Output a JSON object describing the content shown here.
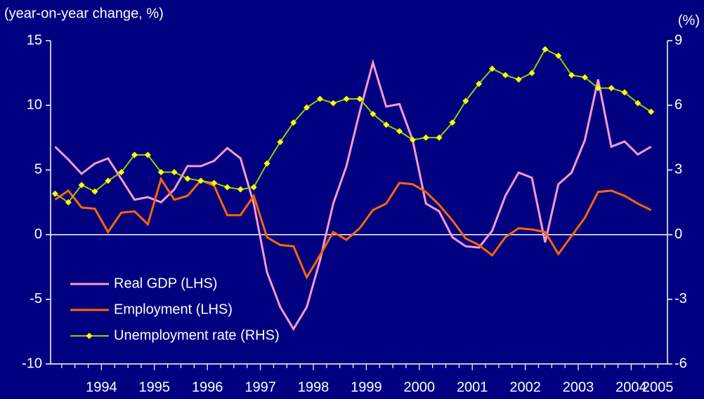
{
  "chart_data": {
    "type": "line",
    "y_label": "(year-on-year change, %)",
    "y2_label": "(%)",
    "categories": [
      null,
      null,
      null,
      "1994",
      null,
      null,
      null,
      "1995",
      null,
      null,
      null,
      "1996",
      null,
      null,
      null,
      "1997",
      null,
      null,
      null,
      "1998",
      null,
      null,
      null,
      "1999",
      null,
      null,
      null,
      "2000",
      null,
      null,
      null,
      "2001",
      null,
      null,
      null,
      "2002",
      null,
      null,
      null,
      "2003",
      null,
      null,
      null,
      "2004",
      null,
      "2005"
    ],
    "series": [
      {
        "name": "Real GDP (LHS)",
        "color": "#f79ad0",
        "values": [
          6.8,
          5.8,
          4.7,
          5.5,
          5.9,
          4.3,
          2.7,
          2.9,
          2.5,
          3.5,
          5.3,
          5.3,
          5.7,
          6.7,
          5.9,
          2.4,
          -2.9,
          -5.6,
          -7.3,
          -5.6,
          -2.0,
          2.4,
          5.3,
          9.5,
          13.3,
          9.9,
          10.1,
          7.3,
          2.4,
          1.8,
          -0.2,
          -0.9,
          -1.0,
          0.3,
          3.0,
          4.8,
          4.4,
          -0.6,
          3.9,
          4.8,
          7.3,
          12.0,
          6.8,
          7.2,
          6.2,
          6.8
        ]
      },
      {
        "name": "Employment (LHS)",
        "color": "#ff6600",
        "values": [
          2.7,
          3.4,
          2.1,
          2.0,
          0.2,
          1.7,
          1.8,
          0.8,
          4.3,
          2.7,
          3.0,
          4.2,
          3.8,
          1.5,
          1.5,
          3.0,
          -0.2,
          -0.8,
          -0.9,
          -3.3,
          -1.6,
          0.2,
          -0.4,
          0.5,
          1.9,
          2.4,
          4.0,
          3.9,
          3.3,
          2.3,
          1.1,
          -0.3,
          -0.8,
          -1.6,
          -0.2,
          0.5,
          0.4,
          0.2,
          -1.5,
          -0.1,
          1.3,
          3.3,
          3.4,
          3.0,
          2.4,
          1.9
        ]
      },
      {
        "name": "Unemployment rate (RHS)",
        "color": "#99cc00",
        "marker_color": "#ffff00",
        "axis": "y2",
        "values": [
          1.9,
          1.5,
          2.3,
          2.0,
          2.5,
          2.9,
          3.7,
          3.7,
          2.9,
          2.9,
          2.6,
          2.5,
          2.4,
          2.2,
          2.1,
          2.2,
          3.3,
          4.3,
          5.2,
          5.9,
          6.3,
          6.1,
          6.3,
          6.3,
          5.6,
          5.1,
          4.8,
          4.4,
          4.5,
          4.5,
          5.2,
          6.2,
          7.0,
          7.7,
          7.4,
          7.2,
          7.5,
          8.6,
          8.3,
          7.4,
          7.3,
          6.8,
          6.8,
          6.6,
          6.1,
          5.7
        ]
      }
    ],
    "ylim": [
      -10,
      15
    ],
    "yticks": [
      -10,
      -5,
      0,
      5,
      10,
      15
    ],
    "y2lim": [
      -6,
      9
    ],
    "y2ticks": [
      -6,
      -3,
      0,
      3,
      6,
      9
    ],
    "zero_line": true,
    "legend": "lower left",
    "background": "#000080"
  }
}
